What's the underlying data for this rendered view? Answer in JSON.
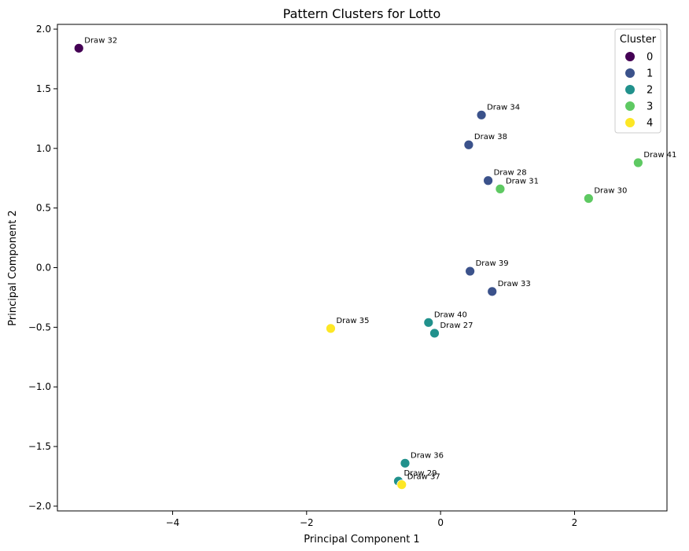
{
  "chart_data": {
    "type": "scatter",
    "title": "Pattern Clusters for Lotto",
    "xlabel": "Principal Component 1",
    "ylabel": "Principal Component 2",
    "xlim": [
      -5.72,
      3.38
    ],
    "ylim": [
      -2.04,
      2.04
    ],
    "xticks": [
      -4,
      -2,
      0,
      2
    ],
    "xtick_labels": [
      "−4",
      "−2",
      "0",
      "2"
    ],
    "yticks": [
      -2.0,
      -1.5,
      -1.0,
      -0.5,
      0.0,
      0.5,
      1.0,
      1.5,
      2.0
    ],
    "ytick_labels": [
      "−2.0",
      "−1.5",
      "−1.0",
      "−0.5",
      "0.0",
      "0.5",
      "1.0",
      "1.5",
      "2.0"
    ],
    "grid": false,
    "legend": {
      "title": "Cluster",
      "placement": "top-right",
      "entries": [
        {
          "label": "0",
          "color": "#440154"
        },
        {
          "label": "1",
          "color": "#3b528b"
        },
        {
          "label": "2",
          "color": "#21918c"
        },
        {
          "label": "3",
          "color": "#5ec962"
        },
        {
          "label": "4",
          "color": "#fde725"
        }
      ]
    },
    "points": [
      {
        "label": "Draw 32",
        "x": -5.4,
        "y": 1.84,
        "cluster": 0
      },
      {
        "label": "Draw 34",
        "x": 0.61,
        "y": 1.28,
        "cluster": 1
      },
      {
        "label": "Draw 38",
        "x": 0.42,
        "y": 1.03,
        "cluster": 1
      },
      {
        "label": "Draw 28",
        "x": 0.71,
        "y": 0.73,
        "cluster": 1
      },
      {
        "label": "Draw 39",
        "x": 0.44,
        "y": -0.03,
        "cluster": 1
      },
      {
        "label": "Draw 33",
        "x": 0.77,
        "y": -0.2,
        "cluster": 1
      },
      {
        "label": "Draw 40",
        "x": -0.18,
        "y": -0.46,
        "cluster": 2
      },
      {
        "label": "Draw 27",
        "x": -0.09,
        "y": -0.55,
        "cluster": 2
      },
      {
        "label": "Draw 36",
        "x": -0.53,
        "y": -1.64,
        "cluster": 2
      },
      {
        "label": "Draw 29",
        "x": -0.63,
        "y": -1.79,
        "cluster": 2
      },
      {
        "label": "Draw 41",
        "x": 2.95,
        "y": 0.88,
        "cluster": 3
      },
      {
        "label": "Draw 31",
        "x": 0.89,
        "y": 0.66,
        "cluster": 3
      },
      {
        "label": "Draw 30",
        "x": 2.21,
        "y": 0.58,
        "cluster": 3
      },
      {
        "label": "Draw 35",
        "x": -1.64,
        "y": -0.51,
        "cluster": 4
      },
      {
        "label": "Draw 37",
        "x": -0.58,
        "y": -1.82,
        "cluster": 4
      }
    ]
  }
}
